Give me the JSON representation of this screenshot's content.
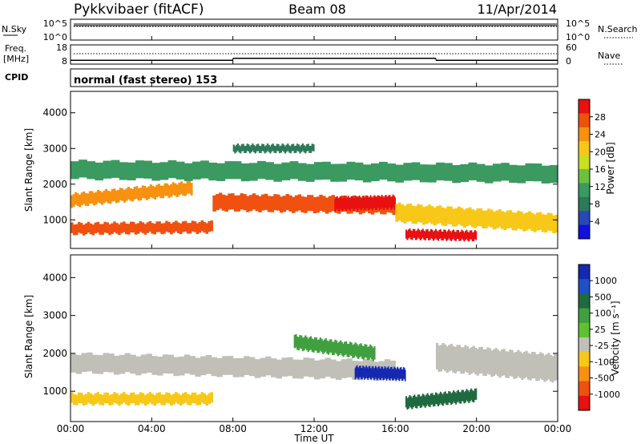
{
  "header": {
    "station": "Pykkvibaer (fitACF)",
    "beam": "Beam 08",
    "date": "11/Apr/2014"
  },
  "strip_noise": {
    "left_label": "N.Sky",
    "left_ticks": [
      "10^5",
      "10^0"
    ],
    "right_label": "N.Search",
    "right_ticks": [
      "10^5",
      "10^0"
    ]
  },
  "strip_freq": {
    "left_label_line1": "Freq.",
    "left_label_line2": "[MHz]",
    "left_ticks": [
      "18",
      "8"
    ],
    "right_label": "Nave",
    "right_ticks": [
      "60",
      "0"
    ]
  },
  "strip_cpid": {
    "label": "CPID",
    "value": "normal (fast stereo) 153"
  },
  "power_panel": {
    "ylabel": "Slant Range [km]",
    "colorbar_label": "Power [dB]",
    "colorbar_ticks": [
      "28",
      "24",
      "20",
      "16",
      "12",
      "8",
      "4"
    ],
    "colors": [
      "#1010e0",
      "#2848b8",
      "#2c7a5a",
      "#3a9a60",
      "#70c040",
      "#c8e020",
      "#f8c818",
      "#f89010",
      "#f05010",
      "#e81010"
    ]
  },
  "velocity_panel": {
    "ylabel": "Slant Range [km]",
    "colorbar_label": "Velocity [m s⁻¹]",
    "colorbar_ticks": [
      "1000",
      "500",
      "100",
      "25",
      "-25",
      "-100",
      "-500",
      "-1000"
    ],
    "colors": [
      "#1428b0",
      "#2050c8",
      "#206a40",
      "#40a040",
      "#60c030",
      "#c0c0b8",
      "#f8c818",
      "#f89010",
      "#f05010",
      "#e81010"
    ]
  },
  "xaxis": {
    "label": "Time UT",
    "ticks": [
      "00:00",
      "04:00",
      "08:00",
      "12:00",
      "16:00",
      "20:00",
      "00:00"
    ]
  },
  "chart_data": {
    "type": "heatmap",
    "title": "Pykkvibaer (fitACF)   Beam 08   11/Apr/2014",
    "xlabel": "Time UT",
    "ylabel": "Slant Range [km]",
    "xlim_hours": [
      0,
      24
    ],
    "ylim_km": [
      200,
      4600
    ],
    "yticks_km": [
      1000,
      2000,
      3000,
      4000
    ],
    "power_scale_db": [
      0,
      30
    ],
    "velocity_scale_ms": [
      -1000,
      1000
    ],
    "frequency_mhz": [
      {
        "from_hour": 0,
        "to_hour": 8,
        "value": 10
      },
      {
        "from_hour": 8,
        "to_hour": 18,
        "value": 11
      },
      {
        "from_hour": 18,
        "to_hour": 24,
        "value": 10
      }
    ],
    "power_features": [
      {
        "from_hour": 0,
        "to_hour": 7,
        "range_km_start": 750,
        "range_km_end": 800,
        "width_km": 300,
        "power_db": 24
      },
      {
        "from_hour": 0,
        "to_hour": 6,
        "range_km_start": 1550,
        "range_km_end": 1900,
        "width_km": 350,
        "power_db": 22
      },
      {
        "from_hour": 7,
        "to_hour": 16,
        "range_km_start": 1500,
        "range_km_end": 1400,
        "width_km": 450,
        "power_db": 24
      },
      {
        "from_hour": 13,
        "to_hour": 16,
        "range_km_start": 1450,
        "range_km_end": 1500,
        "width_km": 350,
        "power_db": 28
      },
      {
        "from_hour": 16.5,
        "to_hour": 20,
        "range_km_start": 600,
        "range_km_end": 550,
        "width_km": 250,
        "power_db": 28
      },
      {
        "from_hour": 16,
        "to_hour": 24,
        "range_km_start": 1200,
        "range_km_end": 900,
        "width_km": 500,
        "power_db": 18
      },
      {
        "from_hour": 0,
        "to_hour": 24,
        "range_km_start": 2400,
        "range_km_end": 2300,
        "width_km": 500,
        "power_db": 10
      },
      {
        "from_hour": 8,
        "to_hour": 12,
        "range_km_start": 3000,
        "range_km_end": 3000,
        "width_km": 200,
        "power_db": 8
      }
    ],
    "velocity_features": [
      {
        "from_hour": 0,
        "to_hour": 7,
        "range_km_start": 800,
        "range_km_end": 800,
        "width_km": 280,
        "velocity_ms": -60
      },
      {
        "from_hour": 0,
        "to_hour": 16,
        "range_km_start": 1750,
        "range_km_end": 1550,
        "width_km": 500,
        "velocity_ms": 0
      },
      {
        "from_hour": 14,
        "to_hour": 16.5,
        "range_km_start": 1500,
        "range_km_end": 1450,
        "width_km": 300,
        "velocity_ms": 900
      },
      {
        "from_hour": 16.5,
        "to_hour": 20,
        "range_km_start": 700,
        "range_km_end": 900,
        "width_km": 300,
        "velocity_ms": 300
      },
      {
        "from_hour": 11,
        "to_hour": 15,
        "range_km_start": 2300,
        "range_km_end": 2000,
        "width_km": 350,
        "velocity_ms": 200
      },
      {
        "from_hour": 18,
        "to_hour": 24,
        "range_km_start": 1900,
        "range_km_end": 1600,
        "width_km": 700,
        "velocity_ms": 0
      }
    ]
  }
}
